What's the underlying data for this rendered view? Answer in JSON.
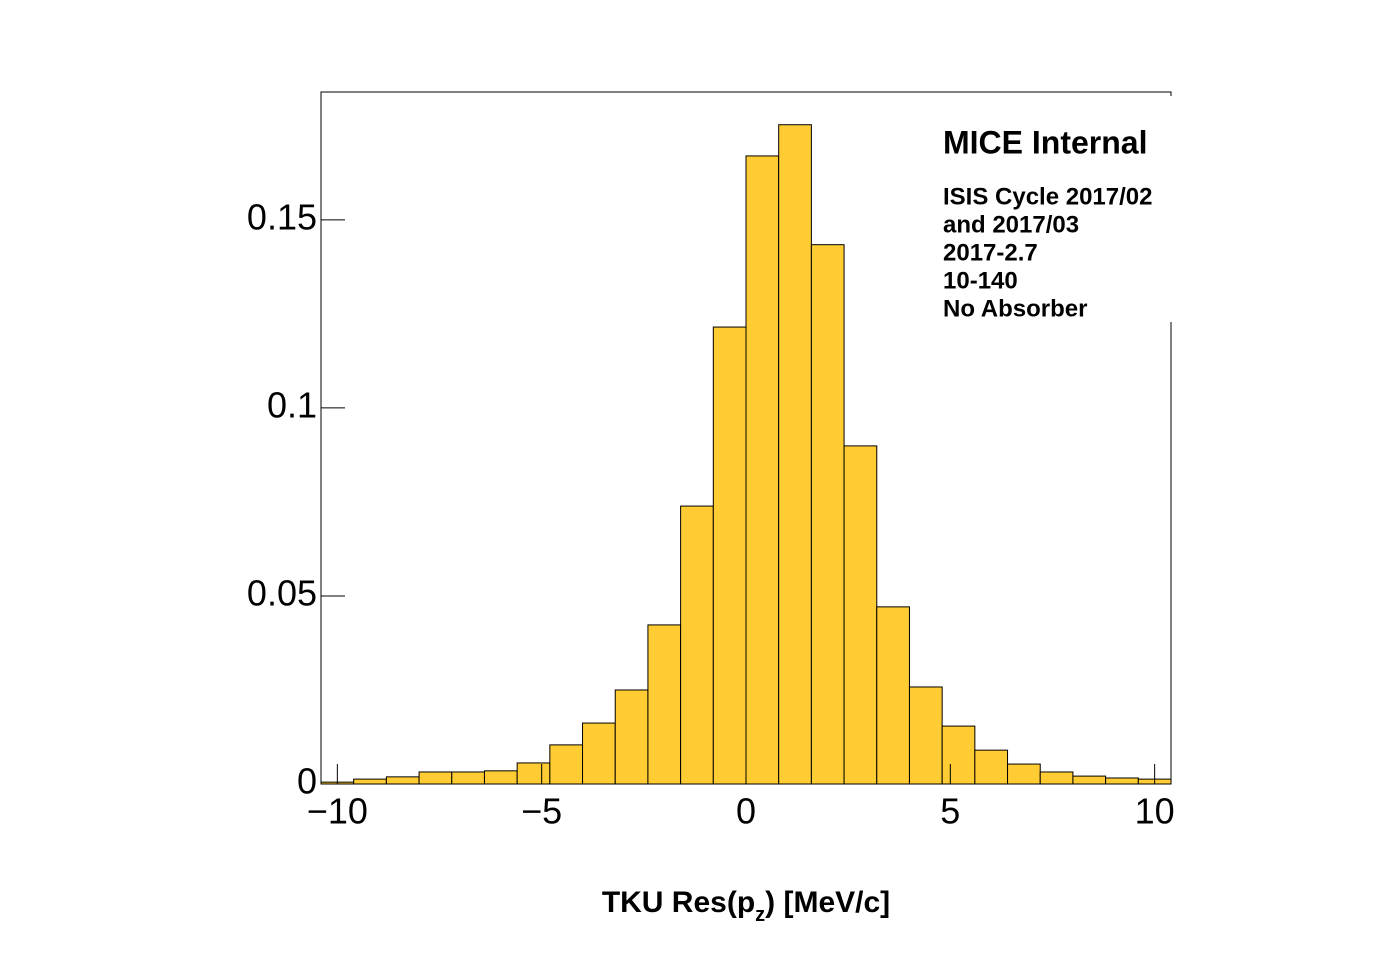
{
  "chart_data": {
    "type": "histogram",
    "bins": [
      -10.4,
      -9.6,
      -8.8,
      -8,
      -7.2,
      -6.4,
      -5.6,
      -4.8,
      -4,
      -3.2,
      -2.4,
      -1.6,
      -0.8,
      0,
      0.8,
      1.6,
      2.4,
      3.2,
      4,
      4.8,
      5.6,
      6.4,
      7.2,
      8,
      8.8,
      9.6,
      10.4
    ],
    "counts": [
      0.0005,
      0.0013,
      0.0019,
      0.0032,
      0.0032,
      0.0035,
      0.0056,
      0.0104,
      0.0162,
      0.025,
      0.0423,
      0.0739,
      0.1215,
      0.167,
      0.1753,
      0.1434,
      0.0899,
      0.0471,
      0.0258,
      0.0154,
      0.009,
      0.0053,
      0.0032,
      0.0021,
      0.0016,
      0.0013
    ],
    "color": "#ffcc33",
    "xlim": [
      -10.4,
      10.4
    ],
    "ylim": [
      0,
      0.184
    ],
    "xticks": [
      {
        "value": -10,
        "label": "−10"
      },
      {
        "value": -5,
        "label": "−5"
      },
      0,
      5,
      10
    ],
    "yticks": [
      0,
      0.05,
      0.1,
      0.15
    ],
    "xlabel": [
      "TKU Res(p",
      "z",
      ") [MeV/c]"
    ],
    "annotations": [
      "MICE Internal",
      "ISIS Cycle 2017/02",
      "and 2017/03",
      "2017-2.7",
      "10-140",
      "No Absorber"
    ]
  }
}
